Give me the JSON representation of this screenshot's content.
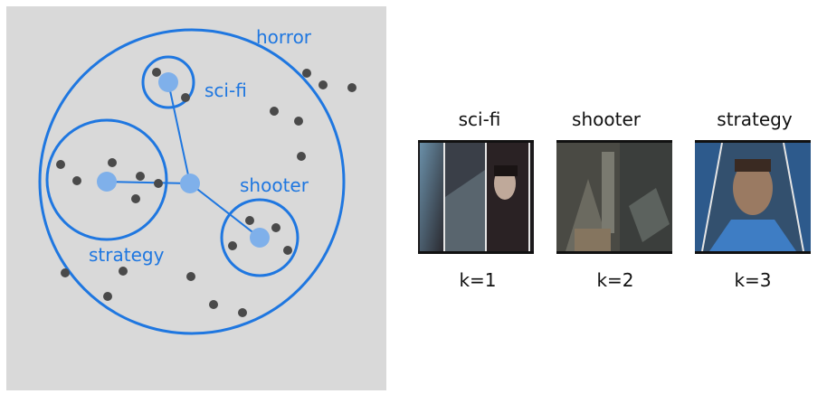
{
  "clusters": {
    "horror": "horror",
    "scifi": "sci-fi",
    "shooter": "shooter",
    "strategy": "strategy"
  },
  "cards": [
    {
      "title": "sci-fi",
      "k": "k=1"
    },
    {
      "title": "shooter",
      "k": "k=2"
    },
    {
      "title": "strategy",
      "k": "k=3"
    }
  ],
  "colors": {
    "accent": "#1f77e0",
    "centroid": "#7fb0ea",
    "point": "#4a4a4a",
    "panel_bg": "#d9d9d9"
  }
}
